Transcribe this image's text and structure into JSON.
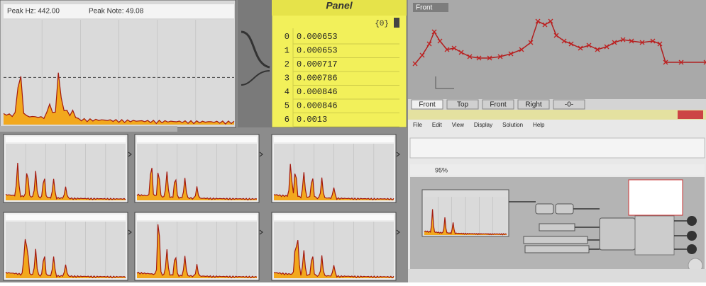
{
  "spectrum_main": {
    "peak_hz": "Peak Hz: 442.00",
    "peak_note": "Peak Note: 49.08"
  },
  "panel": {
    "title": "Panel",
    "path": "{0}",
    "rows": [
      {
        "index": "0",
        "value": "0.000653"
      },
      {
        "index": "1",
        "value": "0.000653"
      },
      {
        "index": "2",
        "value": "0.000717"
      },
      {
        "index": "3",
        "value": "0.000786"
      },
      {
        "index": "4",
        "value": "0.000846"
      },
      {
        "index": "5",
        "value": "0.000846"
      },
      {
        "index": "6",
        "value": "0.0013"
      }
    ]
  },
  "viewport": {
    "label": "Front",
    "tabs": [
      "Front",
      "Top",
      "Front",
      "Right",
      "-0-"
    ]
  },
  "grasshopper": {
    "menu": [
      "File",
      "Edit",
      "View",
      "Display",
      "Solution",
      "Help"
    ],
    "zoom": "95%"
  }
}
